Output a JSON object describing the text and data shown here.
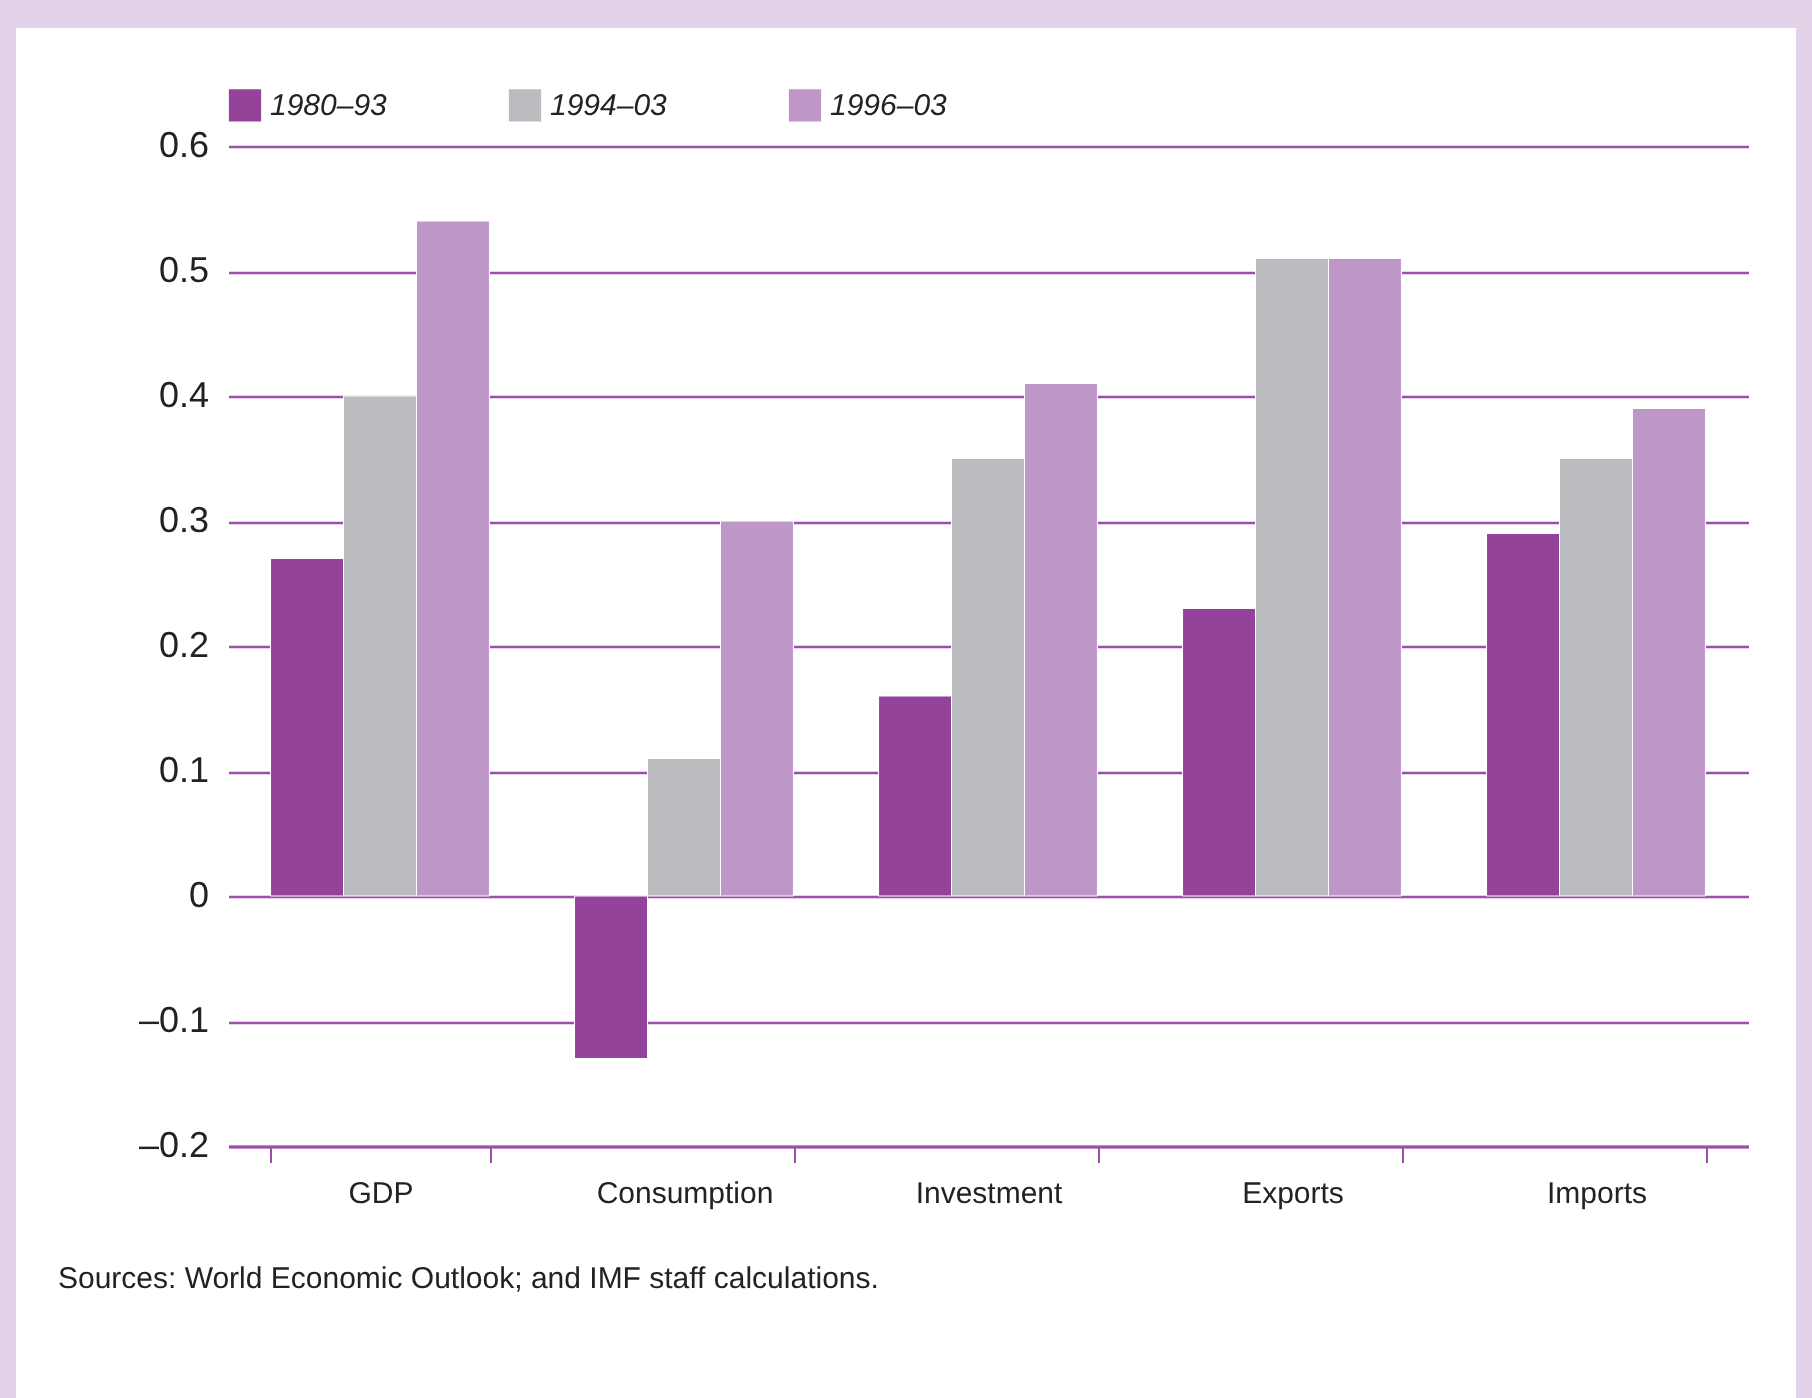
{
  "chart_data": {
    "type": "bar",
    "categories": [
      "GDP",
      "Consumption",
      "Investment",
      "Exports",
      "Imports"
    ],
    "series": [
      {
        "name": "1980–93",
        "color": "#93449a",
        "values": [
          0.27,
          -0.13,
          0.16,
          0.23,
          0.29
        ]
      },
      {
        "name": "1994–03",
        "color": "#bbbcc0",
        "values": [
          0.4,
          0.11,
          0.35,
          0.51,
          0.35
        ]
      },
      {
        "name": "1996–03",
        "color": "#bf97c6",
        "values": [
          0.54,
          0.3,
          0.41,
          0.51,
          0.39
        ]
      }
    ],
    "ylim": [
      -0.2,
      0.6
    ],
    "yticks": [
      {
        "value": -0.2,
        "label": "–0.2"
      },
      {
        "value": -0.1,
        "label": "–0.1"
      },
      0,
      0.1,
      0.2,
      0.3,
      0.4,
      0.5,
      0.6
    ],
    "grid": "y",
    "legend": "top",
    "annotations": [
      "Sources: World Economic Outlook; and IMF staff calculations."
    ]
  }
}
